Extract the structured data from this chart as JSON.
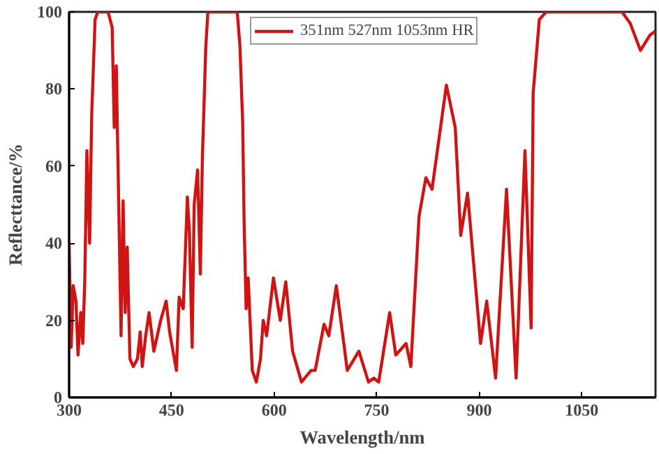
{
  "chart_data": {
    "type": "line",
    "xlabel": "Wavelength/nm",
    "ylabel": "Reflecttance/%",
    "xlim": [
      300,
      1158
    ],
    "ylim": [
      0,
      100
    ],
    "xticks": [
      300,
      450,
      600,
      750,
      900,
      1050
    ],
    "yticks": [
      0,
      20,
      40,
      60,
      80,
      100
    ],
    "grid": false,
    "legend": "top",
    "series": [
      {
        "name": "351nm 527nm 1053nm HR",
        "color": "#d01414",
        "line_style": "solid",
        "x": [
          300,
          303,
          306,
          310,
          313,
          317,
          320,
          323,
          326,
          330,
          333,
          338,
          342,
          357,
          363,
          366,
          369,
          373,
          376,
          379,
          382,
          385,
          389,
          394,
          400,
          404,
          407,
          412,
          417,
          424,
          434,
          442,
          447,
          457,
          461,
          467,
          473,
          476,
          480,
          483,
          488,
          492,
          495,
          500,
          503,
          546,
          550,
          554,
          556,
          559,
          562,
          568,
          574,
          580,
          584,
          589,
          599,
          609,
          617,
          627,
          640,
          654,
          660,
          673,
          680,
          691,
          707,
          724,
          738,
          746,
          753,
          769,
          778,
          793,
          800,
          812,
          822,
          831,
          852,
          865,
          873,
          883,
          902,
          911,
          924,
          940,
          954,
          967,
          976,
          979,
          988,
          998,
          1109,
          1121,
          1136,
          1150,
          1158
        ],
        "values": [
          40,
          13,
          29,
          25,
          11,
          22,
          14,
          31,
          64,
          40,
          73,
          98,
          100,
          100,
          96,
          70,
          86,
          46,
          16,
          51,
          22,
          39,
          10,
          8,
          10,
          17,
          8,
          16,
          22,
          12,
          20,
          25,
          17,
          7,
          26,
          23,
          52,
          43,
          13,
          50,
          59,
          32,
          62,
          91,
          100,
          100,
          91,
          71,
          46,
          23,
          31,
          7,
          4,
          10,
          20,
          16,
          31,
          20,
          30,
          12,
          4,
          7,
          7,
          19,
          16,
          29,
          7,
          12,
          4,
          5,
          4,
          22,
          11,
          14,
          8,
          47,
          57,
          54,
          81,
          70,
          42,
          53,
          14,
          25,
          5,
          54,
          5,
          64,
          18,
          79,
          98,
          100,
          100,
          97,
          90,
          94,
          95
        ]
      }
    ]
  }
}
